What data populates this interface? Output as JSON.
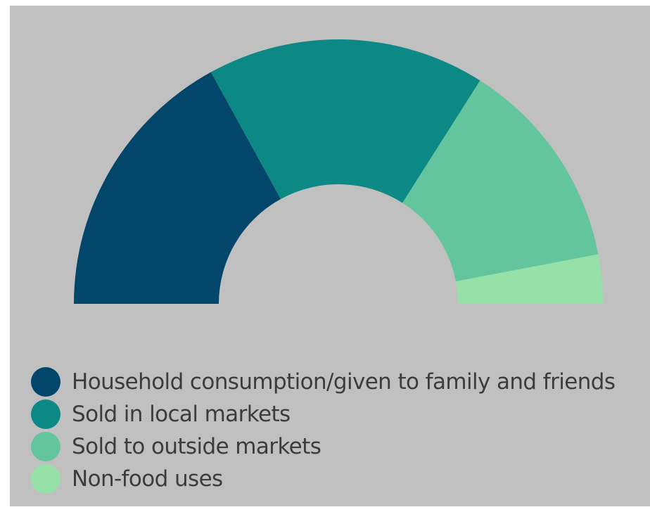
{
  "chart_data": {
    "type": "pie",
    "subtype": "semicircle-donut",
    "title": "",
    "series": [
      {
        "name": "Household consumption/given to family and friends",
        "value": 34,
        "color": "#02476b"
      },
      {
        "name": "Sold in local markets",
        "value": 34,
        "color": "#0c8984"
      },
      {
        "name": "Sold to outside markets",
        "value": 26,
        "color": "#62c59d"
      },
      {
        "name": "Non-food uses",
        "value": 6,
        "color": "#96e1a7"
      }
    ],
    "legend_position": "bottom-left"
  },
  "background_color": "#c0c0c0"
}
